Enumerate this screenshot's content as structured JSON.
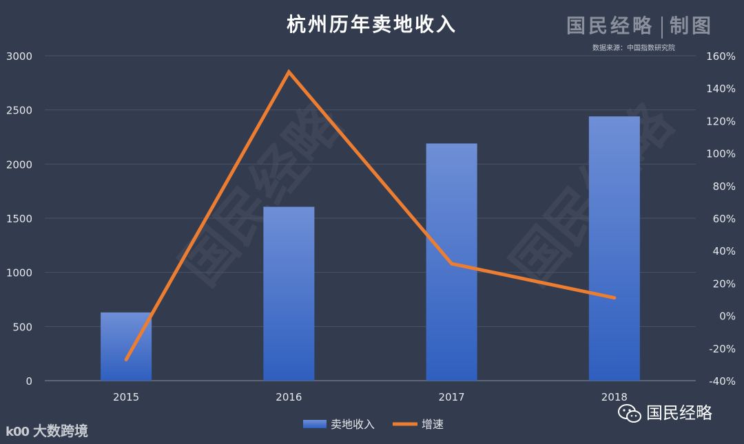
{
  "title": "杭州历年卖地收入",
  "brand": {
    "left": "国民经略",
    "right": "制图"
  },
  "source": "数据来源：中国指数研究院",
  "footer_left": {
    "logo": "k00",
    "text": "大数跨境"
  },
  "footer_right": {
    "text": "国民经略",
    "icon": "wechat-icon"
  },
  "watermark": "国民经略",
  "colors": {
    "background": "#333c4e",
    "bar_top": "#6f8fd6",
    "bar_bottom": "#2f5fbf",
    "line": "#ed7d31",
    "grid": "#4a5366",
    "text": "#e6e8ec"
  },
  "chart_data": {
    "type": "bar+line",
    "categories": [
      "2015",
      "2016",
      "2017",
      "2018"
    ],
    "series": [
      {
        "name": "卖地收入",
        "type": "bar",
        "axis": "left",
        "values": [
          630,
          1605,
          2190,
          2440
        ]
      },
      {
        "name": "增速",
        "type": "line",
        "axis": "right",
        "values": [
          -27,
          150,
          32,
          11
        ]
      }
    ],
    "y_left": {
      "min": 0,
      "max": 3000,
      "ticks": [
        "0",
        "500",
        "1000",
        "1500",
        "2000",
        "2500",
        "3000"
      ]
    },
    "y_right": {
      "min": -40,
      "max": 160,
      "ticks": [
        "-40%",
        "-20%",
        "0%",
        "20%",
        "40%",
        "60%",
        "80%",
        "100%",
        "120%",
        "140%",
        "160%"
      ]
    },
    "grid": true,
    "legend": "bottom"
  }
}
